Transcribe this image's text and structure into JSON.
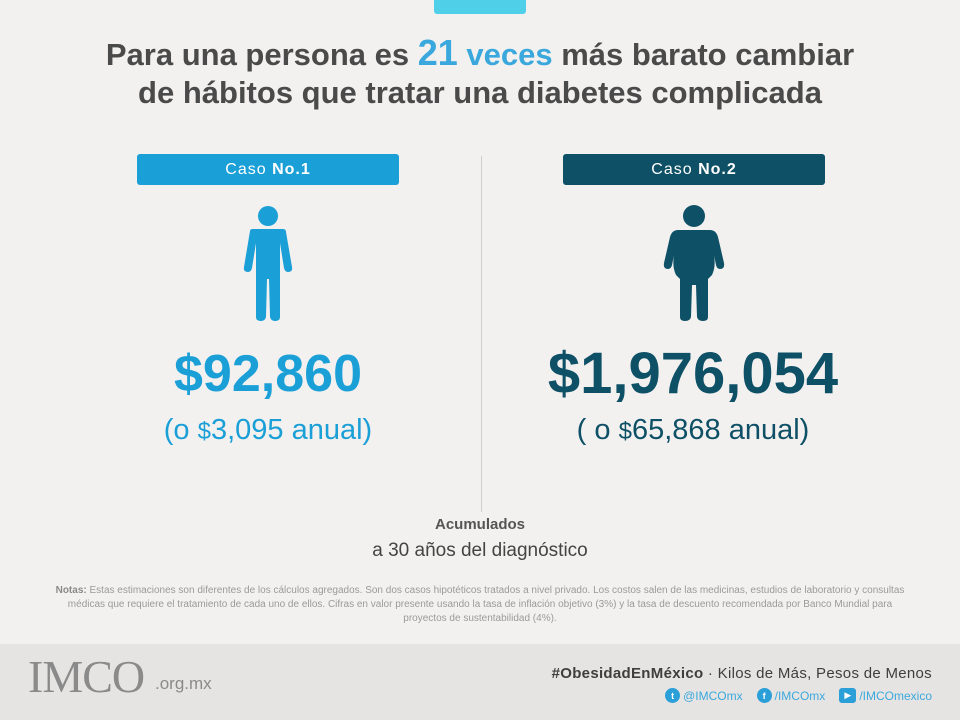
{
  "title": {
    "part1": "Para una persona es ",
    "highlight_num": "21",
    "highlight_word": " veces",
    "part2": " más barato cambiar",
    "line2": "de hábitos que tratar una diabetes complicada"
  },
  "cases": [
    {
      "label": "Caso ",
      "num": "No.1",
      "amount": "$92,860",
      "annual_pre": "(o ",
      "annual_sym": "$",
      "annual_val": "3,095 anual)"
    },
    {
      "label": "Caso ",
      "num": "No.2",
      "amount": "$1,976,054",
      "annual_pre": "( o ",
      "annual_sym": "$",
      "annual_val": "65,868 anual)"
    }
  ],
  "accumulated": {
    "title": "Acumulados",
    "subtitle": "a 30 años del diagnóstico"
  },
  "notes": {
    "label": "Notas:",
    "text": " Estas estimaciones son diferentes de los cálculos agregados. Son dos casos hipotéticos tratados a nivel privado. Los costos salen de las medicinas, estudios de laboratorio y consultas médicas que requiere el tratamiento de cada uno de ellos. Cifras en valor presente usando la tasa de inflación objetivo (3%) y la tasa de descuento recomendada por Banco Mundial para proyectos de sustentabilidad (4%)."
  },
  "footer": {
    "logo": "IMCO",
    "domain": ".org.mx",
    "hashtag": "#ObesidadEnMéxico",
    "tagline": " · Kilos de Más, Pesos de Menos",
    "social": [
      {
        "icon": "twitter-icon",
        "handle": "@IMCOmx"
      },
      {
        "icon": "facebook-icon",
        "handle": "/IMCOmx"
      },
      {
        "icon": "youtube-icon",
        "handle": "/IMCOmexico"
      }
    ]
  },
  "colors": {
    "case1": "#1a9fd6",
    "case2": "#0e5066",
    "highlight": "#3aa8dc"
  }
}
